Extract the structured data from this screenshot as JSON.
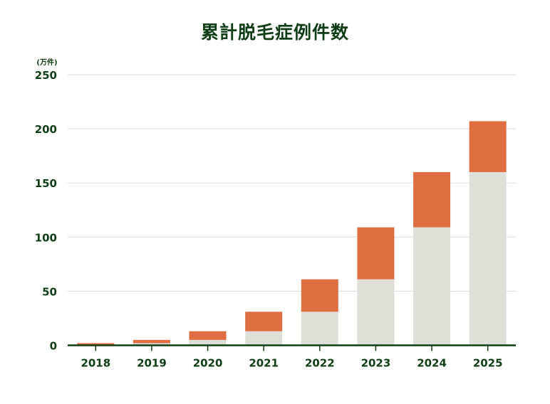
{
  "chart_data": {
    "type": "bar",
    "stacked": true,
    "title": "累計脱毛症例件数",
    "ylabel": "(万件)",
    "xlabel": "",
    "categories": [
      "2018",
      "2019",
      "2020",
      "2021",
      "2022",
      "2023",
      "2024",
      "2025"
    ],
    "series": [
      {
        "values": [
          0,
          2,
          5,
          13,
          31,
          61,
          109,
          160
        ],
        "color": "#dfdfd9"
      },
      {
        "values": [
          2,
          3,
          8,
          18,
          30,
          48,
          51,
          47
        ],
        "color": "#df6f43"
      }
    ],
    "ylim": [
      0,
      250
    ],
    "yticks": [
      "0",
      "50",
      "100",
      "150",
      "200",
      "250"
    ],
    "grid": true,
    "legend": "none",
    "axis_color": "#0f3d14",
    "grid_color": "#dddddd"
  }
}
